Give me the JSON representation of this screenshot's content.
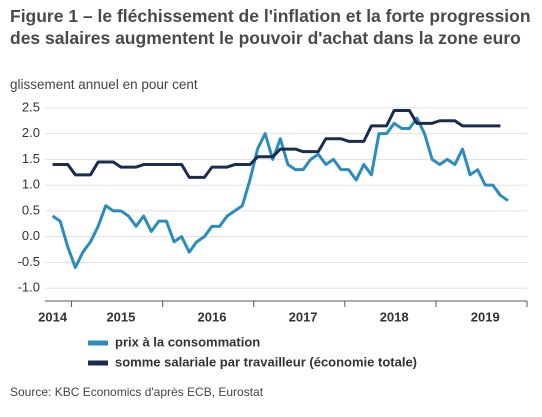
{
  "chart_data": {
    "type": "line",
    "title": "Figure 1 – le fléchissement de l'inflation et la forte progression des salaires augmentent le pouvoir d'achat dans la zone euro",
    "subtitle": "glissement annuel en pour cent",
    "source": "Source: KBC Economics d'après ECB, Eurostat",
    "categories": [
      "2014",
      null,
      null,
      null,
      null,
      null,
      null,
      null,
      null,
      "2015",
      null,
      null,
      null,
      null,
      null,
      null,
      null,
      null,
      null,
      null,
      null,
      "2016",
      null,
      null,
      null,
      null,
      null,
      null,
      null,
      null,
      null,
      null,
      null,
      "2017",
      null,
      null,
      null,
      null,
      null,
      null,
      null,
      null,
      null,
      null,
      null,
      "2018",
      null,
      null,
      null,
      null,
      null,
      null,
      null,
      null,
      null,
      null,
      null,
      "2019",
      null,
      null,
      null
    ],
    "series": [
      {
        "name": "prix à la consommation",
        "color": "#2b8cbe",
        "values": [
          0.4,
          0.3,
          -0.2,
          -0.6,
          -0.3,
          -0.1,
          0.2,
          0.6,
          0.5,
          0.5,
          0.4,
          0.2,
          0.4,
          0.1,
          0.3,
          0.3,
          -0.1,
          0.0,
          -0.3,
          -0.1,
          0.0,
          0.2,
          0.2,
          0.4,
          0.5,
          0.6,
          1.1,
          1.7,
          2.0,
          1.5,
          1.9,
          1.4,
          1.3,
          1.3,
          1.5,
          1.6,
          1.4,
          1.5,
          1.3,
          1.3,
          1.1,
          1.4,
          1.2,
          2.0,
          2.0,
          2.2,
          2.1,
          2.1,
          2.3,
          2.0,
          1.5,
          1.4,
          1.5,
          1.4,
          1.7,
          1.2,
          1.3,
          1.0,
          1.0,
          0.8,
          0.7
        ]
      },
      {
        "name": "somme salariale par travailleur (économie totale)",
        "color": "#1b2d4f",
        "values": [
          1.4,
          1.4,
          1.4,
          1.2,
          1.2,
          1.2,
          1.45,
          1.45,
          1.45,
          1.35,
          1.35,
          1.35,
          1.4,
          1.4,
          1.4,
          1.4,
          1.4,
          1.4,
          1.15,
          1.15,
          1.15,
          1.35,
          1.35,
          1.35,
          1.4,
          1.4,
          1.4,
          1.55,
          1.55,
          1.55,
          1.7,
          1.7,
          1.7,
          1.65,
          1.65,
          1.65,
          1.9,
          1.9,
          1.9,
          1.85,
          1.85,
          1.85,
          2.15,
          2.15,
          2.15,
          2.45,
          2.45,
          2.45,
          2.2,
          2.2,
          2.2,
          2.25,
          2.25,
          2.25,
          2.15,
          2.15,
          2.15,
          2.15,
          2.15,
          2.15,
          null
        ]
      }
    ],
    "xlim": [
      -1,
      62.5
    ],
    "xticks": [
      2.5,
      14.5,
      26.5,
      38.5,
      50.5,
      62.5
    ],
    "ylim": [
      -1.25,
      2.75
    ],
    "yticks": [
      {
        "value": -1,
        "label": "-1.0"
      },
      {
        "value": -0.5,
        "label": "-0.5"
      },
      {
        "value": 0,
        "label": "0.0"
      },
      {
        "value": 0.5,
        "label": "0.5"
      },
      {
        "value": 1,
        "label": "1.0"
      },
      {
        "value": 1.5,
        "label": "1.5"
      },
      {
        "value": 2,
        "label": "2.0"
      },
      {
        "value": 2.5,
        "label": "2.5"
      }
    ],
    "grid": true
  }
}
